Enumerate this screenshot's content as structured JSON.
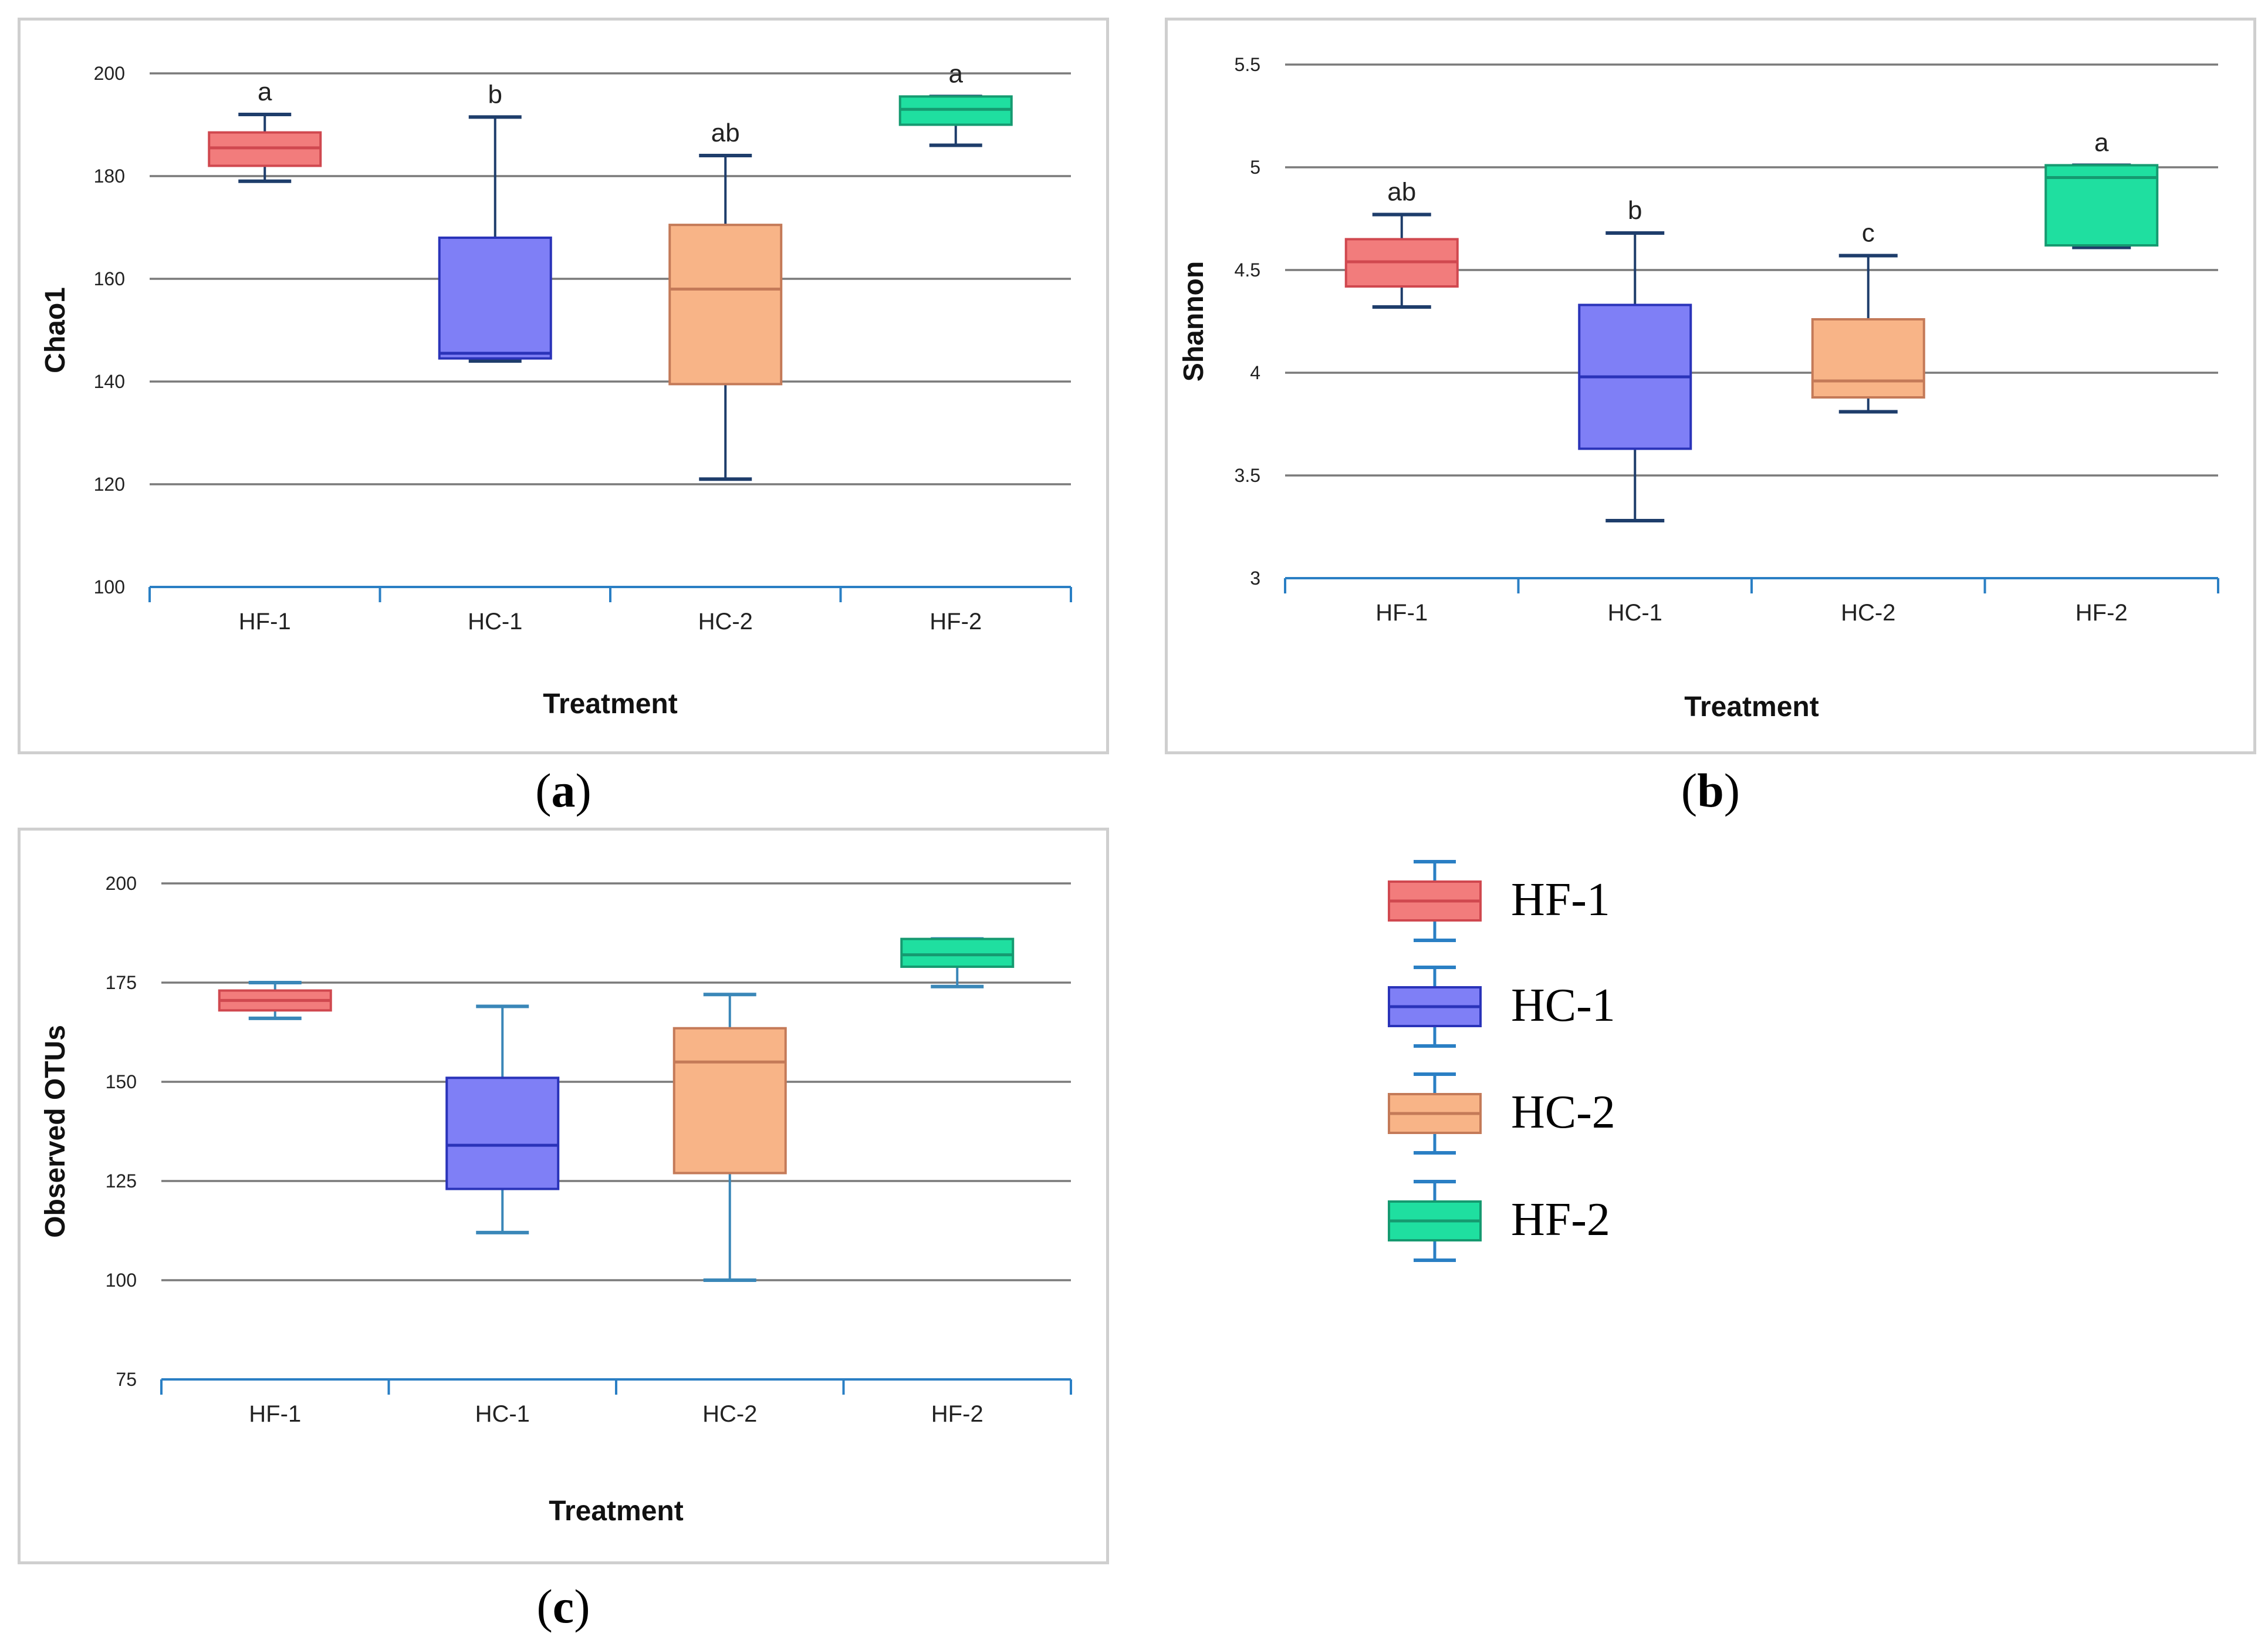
{
  "chart_data": [
    {
      "type": "box",
      "panel": "a",
      "xlabel": "Treatment",
      "ylabel": "Chao1",
      "ylim": [
        100,
        200
      ],
      "yticks": [
        100,
        120,
        140,
        160,
        180,
        200
      ],
      "yticklabels": [
        "100",
        "120",
        "140",
        "160",
        "180",
        "200"
      ],
      "categories": [
        "HF-1",
        "HC-1",
        "HC-2",
        "HF-2"
      ],
      "boxes": [
        {
          "group": "HF-1",
          "min": 179,
          "q1": 182,
          "median": 185.5,
          "q3": 188.5,
          "max": 192,
          "letter": "a"
        },
        {
          "group": "HC-1",
          "min": 144,
          "q1": 144.5,
          "median": 145.5,
          "q3": 168,
          "max": 191.5,
          "letter": "b"
        },
        {
          "group": "HC-2",
          "min": 121,
          "q1": 139.5,
          "median": 158,
          "q3": 170.5,
          "max": 184,
          "letter": "ab"
        },
        {
          "group": "HF-2",
          "min": 186,
          "q1": 190,
          "median": 193,
          "q3": 195.5,
          "max": 195.5,
          "letter": "a"
        }
      ],
      "grid": true
    },
    {
      "type": "box",
      "panel": "b",
      "xlabel": "Treatment",
      "ylabel": "Shannon",
      "ylim": [
        3,
        5.5
      ],
      "yticks": [
        3,
        3.5,
        4,
        4.5,
        5,
        5.5
      ],
      "yticklabels": [
        "3",
        "3.5",
        "4",
        "4.5",
        "5",
        "5.5"
      ],
      "categories": [
        "HF-1",
        "HC-1",
        "HC-2",
        "HF-2"
      ],
      "boxes": [
        {
          "group": "HF-1",
          "min": 4.32,
          "q1": 4.42,
          "median": 4.54,
          "q3": 4.65,
          "max": 4.77,
          "letter": "ab"
        },
        {
          "group": "HC-1",
          "min": 3.28,
          "q1": 3.63,
          "median": 3.98,
          "q3": 4.33,
          "max": 4.68,
          "letter": "b"
        },
        {
          "group": "HC-2",
          "min": 3.81,
          "q1": 3.88,
          "median": 3.96,
          "q3": 4.26,
          "max": 4.57,
          "letter": "c"
        },
        {
          "group": "HF-2",
          "min": 4.61,
          "q1": 4.62,
          "median": 4.95,
          "q3": 5.01,
          "max": 5.01,
          "letter": "a"
        }
      ],
      "grid": true
    },
    {
      "type": "box",
      "panel": "c",
      "xlabel": "Treatment",
      "ylabel": "Observed OTUs",
      "ylim": [
        75,
        200
      ],
      "yticks": [
        75,
        100,
        125,
        150,
        175,
        200
      ],
      "yticklabels": [
        "75",
        "100",
        "125",
        "150",
        "175",
        "200"
      ],
      "categories": [
        "HF-1",
        "HC-1",
        "HC-2",
        "HF-2"
      ],
      "boxes": [
        {
          "group": "HF-1",
          "min": 166,
          "q1": 168,
          "median": 170.5,
          "q3": 173,
          "max": 175,
          "letter": ""
        },
        {
          "group": "HC-1",
          "min": 112,
          "q1": 123,
          "median": 134,
          "q3": 151,
          "max": 169,
          "letter": ""
        },
        {
          "group": "HC-2",
          "min": 100,
          "q1": 127,
          "median": 155,
          "q3": 163.5,
          "max": 172,
          "letter": ""
        },
        {
          "group": "HF-2",
          "min": 174,
          "q1": 179,
          "median": 182,
          "q3": 186,
          "max": 186,
          "letter": ""
        }
      ],
      "grid": true
    }
  ],
  "colors": {
    "HF-1": {
      "fill": "#f27c7c",
      "stroke": "#d0484f"
    },
    "HC-1": {
      "fill": "#7f7ff6",
      "stroke": "#2a33b9"
    },
    "HC-2": {
      "fill": "#f8b487",
      "stroke": "#c47a58"
    },
    "HF-2": {
      "fill": "#1fdfa0",
      "stroke": "#159a70"
    },
    "whisker_ab": "#1e3d6b",
    "whisker_c": "#3a87b8",
    "grid": "#7a7a7a",
    "axis": "#2a7fc4"
  },
  "captions": {
    "a": "a",
    "b": "b",
    "c": "c"
  },
  "legend": [
    {
      "key": "HF-1",
      "label": "HF-1"
    },
    {
      "key": "HC-1",
      "label": "HC-1"
    },
    {
      "key": "HC-2",
      "label": "HC-2"
    },
    {
      "key": "HF-2",
      "label": "HF-2"
    }
  ]
}
